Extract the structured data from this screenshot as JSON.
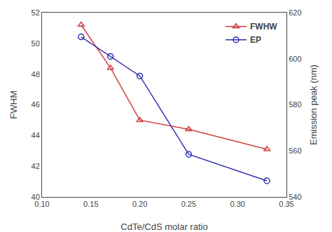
{
  "chart_data": {
    "type": "line",
    "x": [
      0.14,
      0.17,
      0.2,
      0.25,
      0.33
    ],
    "series": [
      {
        "name": "FWHW",
        "color": "#d04040",
        "marker": "triangle",
        "line_style": "solid",
        "values": [
          51.2,
          48.4,
          45.0,
          44.4,
          43.1
        ]
      },
      {
        "name": "EP",
        "color": "#3030b0",
        "marker": "circle",
        "line_style": "solid",
        "axis": "y2",
        "values": [
          609.5,
          601.0,
          592.5,
          558.5,
          547.0
        ]
      }
    ],
    "xlabel": "CdTe/CdS molar ratio",
    "ylabel": "FWHM",
    "y2label": "Emission peak (nm)",
    "xlim": [
      0.1,
      0.35
    ],
    "xticks": [
      {
        "value": 0.1,
        "label": "0.10"
      },
      0.15,
      {
        "value": 0.2,
        "label": "0.20"
      },
      0.25,
      {
        "value": 0.3,
        "label": "0.30"
      },
      0.35
    ],
    "ylim": [
      40,
      52
    ],
    "yticks": [
      40,
      42,
      44,
      46,
      48,
      50,
      52
    ],
    "y2lim": [
      540,
      620
    ],
    "y2ticks": [
      540,
      560,
      580,
      600,
      620
    ],
    "legend": "upper right",
    "grid": false
  }
}
